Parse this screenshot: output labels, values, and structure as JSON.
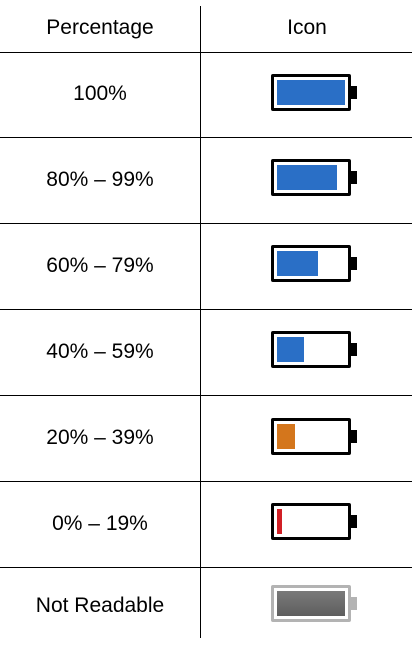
{
  "header": {
    "col_percentage": "Percentage",
    "col_icon": "Icon"
  },
  "rows": [
    {
      "label": "100%",
      "level": 1.0,
      "color": "#2a6fc6",
      "icon": "battery-full-icon"
    },
    {
      "label": "80% – 99%",
      "level": 0.88,
      "color": "#2a6fc6",
      "icon": "battery-high-icon"
    },
    {
      "label": "60% – 79%",
      "level": 0.6,
      "color": "#2a6fc6",
      "icon": "battery-medium-high-icon"
    },
    {
      "label": "40% – 59%",
      "level": 0.39,
      "color": "#2a6fc6",
      "icon": "battery-medium-icon"
    },
    {
      "label": "20% – 39%",
      "level": 0.27,
      "color": "#d4761c",
      "icon": "battery-low-icon"
    },
    {
      "label": "0% – 19%",
      "level": 0.07,
      "color": "#d11f25",
      "icon": "battery-critical-icon"
    },
    {
      "label": "Not Readable",
      "level": 1.0,
      "color": "#6b6b6b",
      "icon": "battery-unknown-icon",
      "outline": "#b3b3b3"
    }
  ]
}
